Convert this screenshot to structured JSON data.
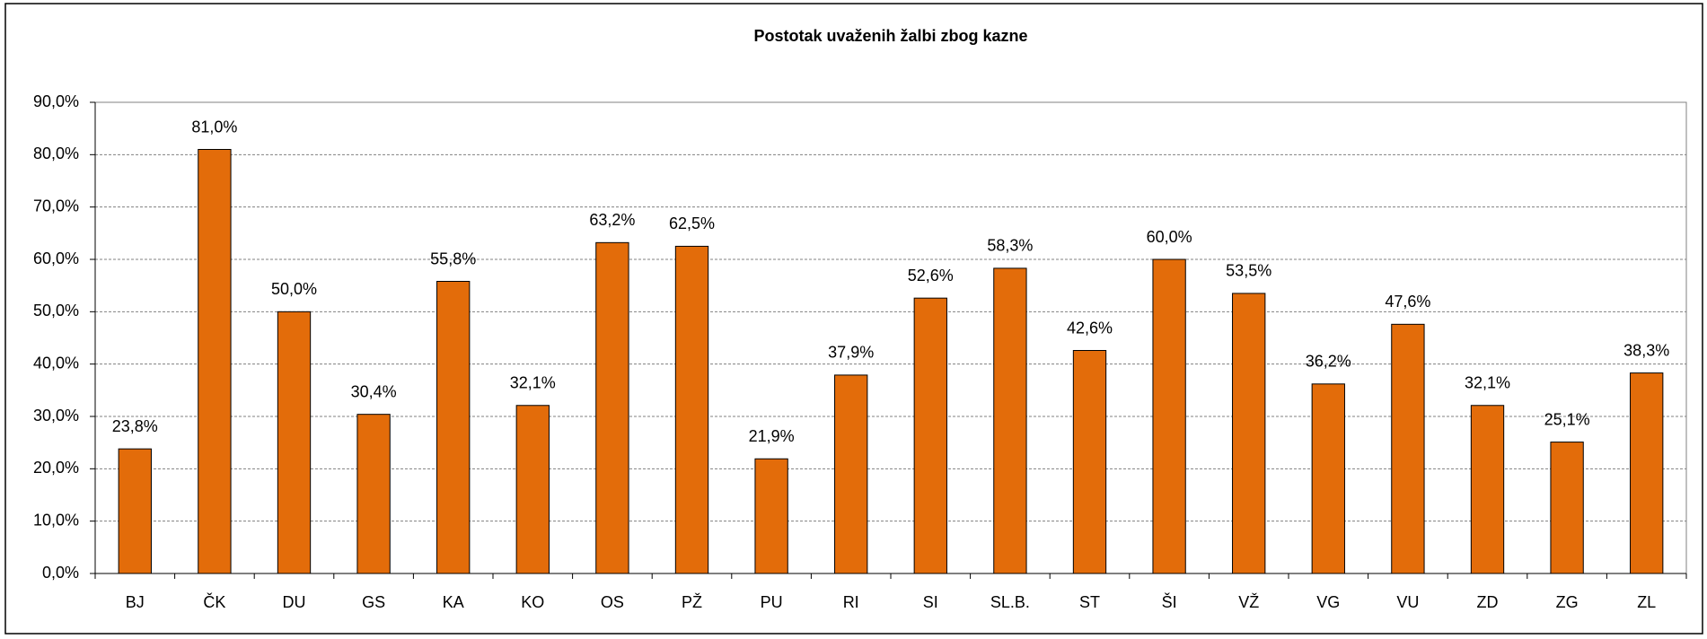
{
  "chart_data": {
    "type": "bar",
    "title": "Postotak uvaženih žalbi zbog kazne",
    "categories": [
      "BJ",
      "ČK",
      "DU",
      "GS",
      "KA",
      "KO",
      "OS",
      "PŽ",
      "PU",
      "RI",
      "SI",
      "SL.B.",
      "ST",
      "ŠI",
      "VŽ",
      "VG",
      "VU",
      "ZD",
      "ZG",
      "ZL"
    ],
    "values": [
      23.8,
      81.0,
      50.0,
      30.4,
      55.8,
      32.1,
      63.2,
      62.5,
      21.9,
      37.9,
      52.6,
      58.3,
      42.6,
      60.0,
      53.5,
      36.2,
      47.6,
      32.1,
      25.1,
      38.3
    ],
    "value_labels": [
      "23,8%",
      "81,0%",
      "50,0%",
      "30,4%",
      "55,8%",
      "32,1%",
      "63,2%",
      "62,5%",
      "21,9%",
      "37,9%",
      "52,6%",
      "58,3%",
      "42,6%",
      "60,0%",
      "53,5%",
      "36,2%",
      "47,6%",
      "32,1%",
      "25,1%",
      "38,3%"
    ],
    "color": "#e36c0a",
    "ylim": [
      0,
      90
    ],
    "yticks": [
      {
        "value": 0,
        "label": "0,0%"
      },
      {
        "value": 10,
        "label": "10,0%"
      },
      {
        "value": 20,
        "label": "20,0%"
      },
      {
        "value": 30,
        "label": "30,0%"
      },
      {
        "value": 40,
        "label": "40,0%"
      },
      {
        "value": 50,
        "label": "50,0%"
      },
      {
        "value": 60,
        "label": "60,0%"
      },
      {
        "value": 70,
        "label": "70,0%"
      },
      {
        "value": 80,
        "label": "80,0%"
      },
      {
        "value": 90,
        "label": "90,0%"
      }
    ],
    "grid": true
  }
}
